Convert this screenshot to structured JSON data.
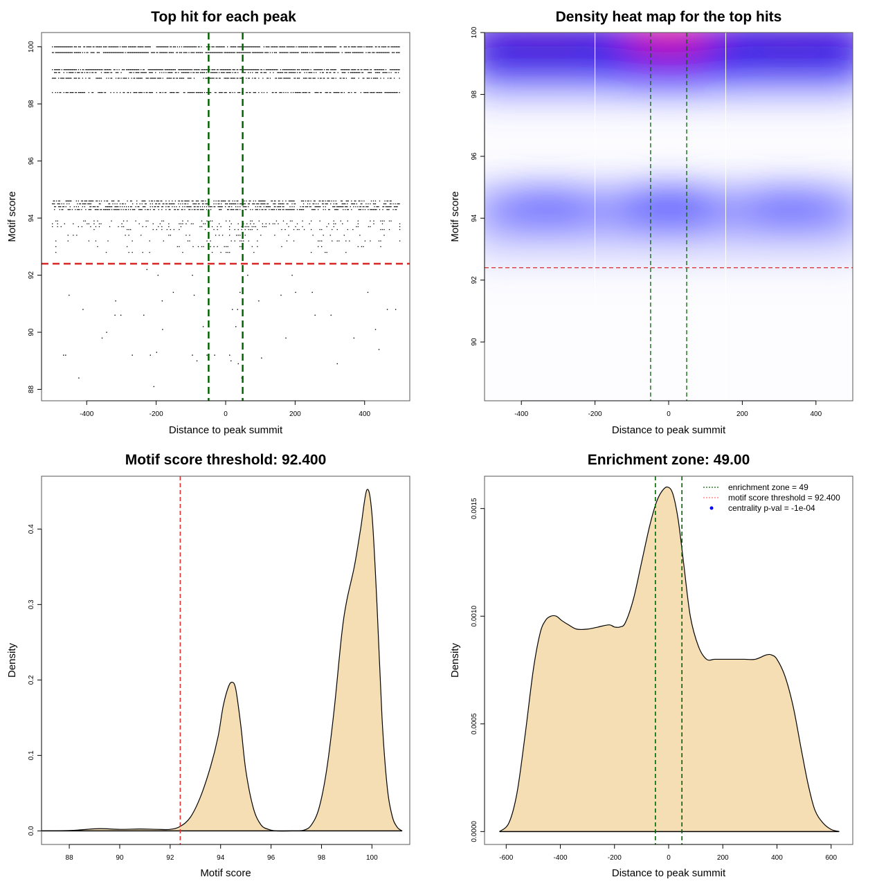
{
  "chart_data": [
    {
      "id": "scatter",
      "type": "scatter",
      "title": "Top hit for each peak",
      "xlabel": "Distance to peak summit",
      "ylabel": "Motif score",
      "xlim": [
        -530,
        530
      ],
      "ylim": [
        87.6,
        100.5
      ],
      "xticks": [
        -400,
        -200,
        0,
        200,
        400
      ],
      "yticks": [
        88,
        90,
        92,
        94,
        96,
        98,
        100
      ],
      "score_bands": [
        100.0,
        99.8,
        99.2,
        99.1,
        98.9,
        98.4,
        94.6,
        94.5,
        94.4,
        94.3
      ],
      "band_x_range": [
        -500,
        500
      ],
      "sparse_rows": [
        93.9,
        93.8,
        93.7,
        93.6,
        93.4,
        93.2,
        93.0,
        92.8
      ],
      "low_points": [
        {
          "x": -228,
          "y": 92.2
        },
        {
          "x": -196,
          "y": 92.0
        },
        {
          "x": -97,
          "y": 92.0
        },
        {
          "x": 62,
          "y": 92.0
        },
        {
          "x": 190,
          "y": 92.0
        },
        {
          "x": -452,
          "y": 91.3
        },
        {
          "x": -152,
          "y": 91.4
        },
        {
          "x": -92,
          "y": 91.3
        },
        {
          "x": 40,
          "y": 91.4
        },
        {
          "x": 158,
          "y": 91.3
        },
        {
          "x": 200,
          "y": 91.4
        },
        {
          "x": 248,
          "y": 91.4
        },
        {
          "x": 408,
          "y": 91.4
        },
        {
          "x": -318,
          "y": 91.1
        },
        {
          "x": -184,
          "y": 91.1
        },
        {
          "x": 94,
          "y": 91.1
        },
        {
          "x": -412,
          "y": 90.8
        },
        {
          "x": 18,
          "y": 90.8
        },
        {
          "x": 33,
          "y": 90.8
        },
        {
          "x": 464,
          "y": 90.8
        },
        {
          "x": 488,
          "y": 90.8
        },
        {
          "x": -320,
          "y": 90.6
        },
        {
          "x": -303,
          "y": 90.6
        },
        {
          "x": -237,
          "y": 90.6
        },
        {
          "x": 256,
          "y": 90.6
        },
        {
          "x": 302,
          "y": 90.6
        },
        {
          "x": -183,
          "y": 90.1
        },
        {
          "x": -66,
          "y": 90.2
        },
        {
          "x": 28,
          "y": 90.2
        },
        {
          "x": 430,
          "y": 90.1
        },
        {
          "x": -344,
          "y": 90.0
        },
        {
          "x": -357,
          "y": 89.8
        },
        {
          "x": 172,
          "y": 89.8
        },
        {
          "x": 368,
          "y": 89.8
        },
        {
          "x": -462,
          "y": 89.2
        },
        {
          "x": -468,
          "y": 89.2
        },
        {
          "x": -270,
          "y": 89.2
        },
        {
          "x": -218,
          "y": 89.2
        },
        {
          "x": -200,
          "y": 89.3
        },
        {
          "x": -97,
          "y": 89.2
        },
        {
          "x": -55,
          "y": 89.2
        },
        {
          "x": -33,
          "y": 89.2
        },
        {
          "x": 10,
          "y": 89.2
        },
        {
          "x": 102,
          "y": 89.1
        },
        {
          "x": 440,
          "y": 89.4
        },
        {
          "x": -84,
          "y": 89.0
        },
        {
          "x": 14,
          "y": 89.0
        },
        {
          "x": 35,
          "y": 88.9
        },
        {
          "x": 320,
          "y": 88.9
        },
        {
          "x": -424,
          "y": 88.4
        },
        {
          "x": 45,
          "y": 88.4
        },
        {
          "x": -208,
          "y": 88.1
        }
      ],
      "threshold": 92.4,
      "enrichment_zone": [
        -49,
        49
      ]
    },
    {
      "id": "heatmap",
      "type": "heatmap",
      "title": "Density heat map for the top hits",
      "xlabel": "Distance to peak summit",
      "ylabel": "Motif score",
      "xlim": [
        -500,
        500
      ],
      "ylim": [
        88.1,
        100
      ],
      "xticks": [
        -400,
        -200,
        0,
        200,
        400
      ],
      "yticks": [
        90,
        92,
        94,
        96,
        98,
        100
      ],
      "color_scale": [
        "#ffffff",
        "#0000ff",
        "#ff0000"
      ],
      "hotspots": [
        {
          "x": 0,
          "y": 99.7,
          "intensity": 1.0
        },
        {
          "x": -330,
          "y": 99.6,
          "intensity": 0.7
        },
        {
          "x": 330,
          "y": 99.6,
          "intensity": 0.62
        },
        {
          "x": 0,
          "y": 94.3,
          "intensity": 0.5
        },
        {
          "x": -330,
          "y": 94.3,
          "intensity": 0.3
        },
        {
          "x": 330,
          "y": 94.3,
          "intensity": 0.28
        }
      ],
      "threshold": 92.4,
      "enrichment_zone": [
        -49,
        49
      ],
      "white_vertical_lines": [
        -200,
        155
      ]
    },
    {
      "id": "score-density",
      "type": "area",
      "title": "Motif score threshold: 92.400",
      "xlabel": "Motif score",
      "ylabel": "Density",
      "xlim": [
        86.9,
        101.5
      ],
      "ylim": [
        -0.018,
        0.47
      ],
      "xticks": [
        88,
        90,
        92,
        94,
        96,
        98,
        100
      ],
      "yticks": [
        0.0,
        0.1,
        0.2,
        0.3,
        0.4
      ],
      "ytick_labels": [
        "0.0",
        "0.1",
        "0.2",
        "0.3",
        "0.4"
      ],
      "x": [
        86.9,
        88.0,
        88.5,
        89.2,
        90.0,
        90.8,
        91.5,
        92.0,
        92.4,
        92.8,
        93.2,
        93.6,
        93.9,
        94.1,
        94.3,
        94.45,
        94.6,
        94.8,
        95.0,
        95.3,
        95.6,
        95.9,
        96.2,
        96.8,
        97.3,
        97.6,
        97.9,
        98.2,
        98.5,
        98.8,
        99.0,
        99.3,
        99.55,
        99.8,
        100.0,
        100.2,
        100.4,
        100.6,
        100.8,
        101.0,
        101.2
      ],
      "y": [
        0.0,
        0.0005,
        0.0015,
        0.003,
        0.002,
        0.0025,
        0.002,
        0.002,
        0.006,
        0.018,
        0.045,
        0.085,
        0.125,
        0.165,
        0.19,
        0.197,
        0.188,
        0.14,
        0.08,
        0.03,
        0.008,
        0.002,
        0.0,
        0.0,
        0.001,
        0.008,
        0.03,
        0.08,
        0.16,
        0.26,
        0.305,
        0.35,
        0.4,
        0.452,
        0.42,
        0.3,
        0.15,
        0.06,
        0.02,
        0.005,
        0.0
      ],
      "threshold": 92.4
    },
    {
      "id": "distance-density",
      "type": "area",
      "title": "Enrichment zone: 49.00",
      "xlabel": "Distance to peak summit",
      "ylabel": "Density",
      "xlim": [
        -680,
        680
      ],
      "ylim": [
        -6e-05,
        0.00165
      ],
      "xticks": [
        -600,
        -400,
        -200,
        0,
        200,
        400,
        600
      ],
      "yticks": [
        0.0,
        0.0005,
        0.001,
        0.0015
      ],
      "ytick_labels": [
        "0.0000",
        "0.0005",
        "0.0010",
        "0.0015"
      ],
      "x": [
        -625,
        -590,
        -560,
        -530,
        -500,
        -475,
        -455,
        -435,
        -415,
        -395,
        -370,
        -340,
        -300,
        -260,
        -220,
        -200,
        -180,
        -160,
        -130,
        -100,
        -70,
        -45,
        -25,
        -5,
        15,
        35,
        55,
        80,
        110,
        140,
        170,
        200,
        240,
        280,
        320,
        360,
        380,
        400,
        430,
        460,
        490,
        515,
        540,
        570,
        600,
        630
      ],
      "y": [
        0.0,
        4e-05,
        0.00018,
        0.00045,
        0.00075,
        0.00092,
        0.00098,
        0.001,
        0.001,
        0.00098,
        0.00096,
        0.00094,
        0.00094,
        0.00095,
        0.00096,
        0.00095,
        0.00095,
        0.00097,
        0.00108,
        0.00125,
        0.00142,
        0.00153,
        0.00158,
        0.0016,
        0.00157,
        0.00145,
        0.00125,
        0.001,
        0.00086,
        0.0008,
        0.0008,
        0.0008,
        0.0008,
        0.0008,
        0.0008,
        0.00082,
        0.00082,
        0.0008,
        0.00072,
        0.00058,
        0.00038,
        0.00022,
        0.0001,
        4e-05,
        1e-05,
        0.0
      ],
      "enrichment_zone": [
        -49,
        49
      ],
      "legend": {
        "position": "top-right",
        "entries": [
          {
            "label": "enrichment zone = 49",
            "symbol": "dotted-line",
            "color": "#006400"
          },
          {
            "label": "motif score threshold = 92.400",
            "symbol": "dotted-line",
            "color": "#ff6f6f"
          },
          {
            "label": "centrality p-val = -1e-04",
            "symbol": "point",
            "color": "#0000ff"
          }
        ]
      }
    }
  ],
  "colors": {
    "enrichment_line": "#006400",
    "threshold_line": "#d62728",
    "density_fill": "#f5deb3",
    "axis": "#555555"
  }
}
